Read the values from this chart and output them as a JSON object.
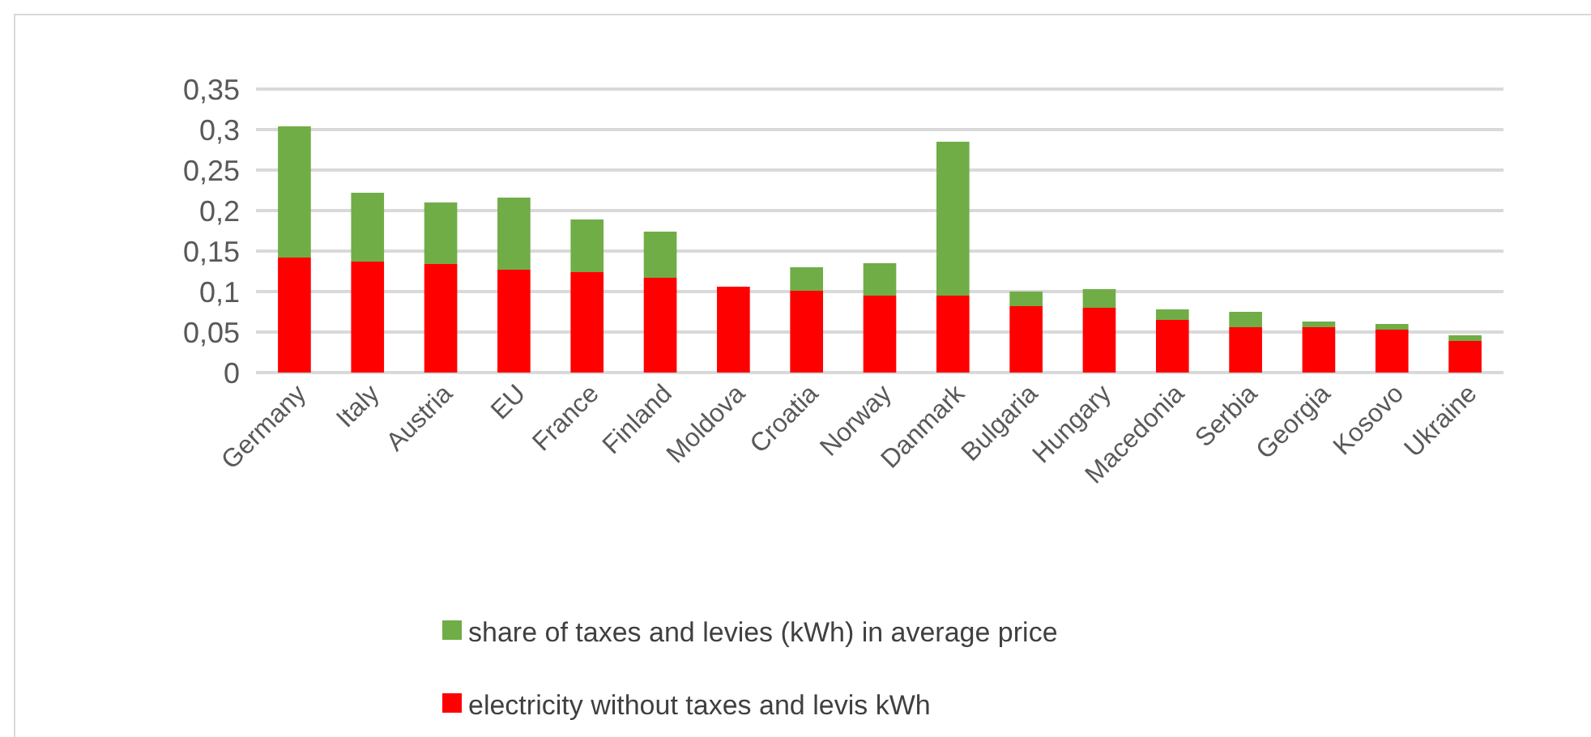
{
  "chart_data": {
    "type": "bar",
    "stacked": true,
    "categories": [
      "Germany",
      "Italy",
      "Austria",
      "EU",
      "France",
      "Finland",
      "Moldova",
      "Croatia",
      "Norway",
      "Danmark",
      "Bulgaria",
      "Hungary",
      "Macedonia",
      "Serbia",
      "Georgia",
      "Kosovo",
      "Ukraine"
    ],
    "series": [
      {
        "name": "electricity without taxes and levis kWh",
        "color": "#ff0000",
        "values": [
          0.142,
          0.137,
          0.134,
          0.127,
          0.124,
          0.117,
          0.106,
          0.101,
          0.095,
          0.095,
          0.082,
          0.08,
          0.065,
          0.056,
          0.056,
          0.053,
          0.039
        ]
      },
      {
        "name": "share of taxes and levies (kWh) in average price",
        "color": "#70ad47",
        "values": [
          0.162,
          0.085,
          0.076,
          0.089,
          0.065,
          0.057,
          0,
          0.029,
          0.04,
          0.19,
          0.018,
          0.023,
          0.013,
          0.019,
          0.007,
          0.007,
          0.007
        ]
      }
    ],
    "ylim": [
      0,
      0.35
    ],
    "yticks": [
      {
        "value": 0,
        "label": "0"
      },
      {
        "value": 0.05,
        "label": "0,05"
      },
      {
        "value": 0.1,
        "label": "0,1"
      },
      {
        "value": 0.15,
        "label": "0,15"
      },
      {
        "value": 0.2,
        "label": "0,2"
      },
      {
        "value": 0.25,
        "label": "0,25"
      },
      {
        "value": 0.3,
        "label": "0,3"
      },
      {
        "value": 0.35,
        "label": "0,35"
      }
    ],
    "grid": "y",
    "legend": "bottom"
  }
}
